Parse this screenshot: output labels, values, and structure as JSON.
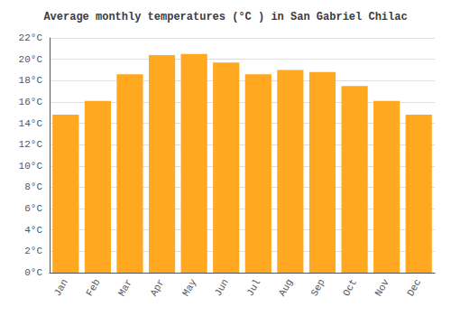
{
  "chart_data": {
    "type": "bar",
    "title": "Average monthly temperatures (°C ) in San Gabriel Chilac",
    "categories": [
      "Jan",
      "Feb",
      "Mar",
      "Apr",
      "May",
      "Jun",
      "Jul",
      "Aug",
      "Sep",
      "Oct",
      "Nov",
      "Dec"
    ],
    "values": [
      14.8,
      16.1,
      18.6,
      20.4,
      20.5,
      19.7,
      18.6,
      19.0,
      18.8,
      17.5,
      16.1,
      14.8
    ],
    "color": "#FFA820",
    "ylim": [
      0,
      22
    ],
    "yticks": [
      {
        "value": 0,
        "label": "0°C"
      },
      {
        "value": 2,
        "label": "2°C"
      },
      {
        "value": 4,
        "label": "4°C"
      },
      {
        "value": 6,
        "label": "6°C"
      },
      {
        "value": 8,
        "label": "8°C"
      },
      {
        "value": 10,
        "label": "10°C"
      },
      {
        "value": 12,
        "label": "12°C"
      },
      {
        "value": 14,
        "label": "14°C"
      },
      {
        "value": 16,
        "label": "16°C"
      },
      {
        "value": 18,
        "label": "18°C"
      },
      {
        "value": 20,
        "label": "20°C"
      },
      {
        "value": 22,
        "label": "22°C"
      }
    ],
    "grid": true
  }
}
